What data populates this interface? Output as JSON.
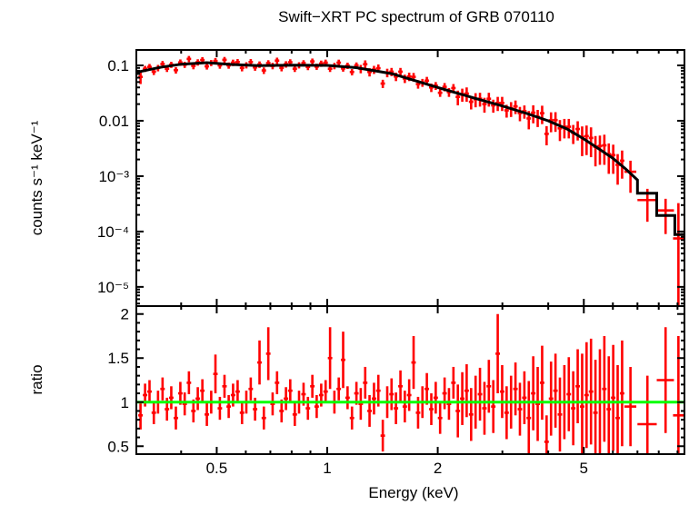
{
  "title": "Swift−XRT PC spectrum of GRB 070110",
  "background_color": "#ffffff",
  "chart_data": {
    "type": "scatter",
    "title": "Swift−XRT PC spectrum of GRB 070110",
    "xlabel": "Energy (keV)",
    "xscale": "log",
    "xlim": [
      0.302,
      9.4
    ],
    "grid": "off",
    "legend": "none",
    "xticks_major": {
      "values": [
        0.5,
        1,
        2,
        5
      ],
      "labels": [
        "0.5",
        "1",
        "2",
        "5"
      ]
    },
    "xticks_minor": [
      0.4,
      0.6,
      0.7,
      0.8,
      0.9,
      3,
      4,
      6,
      7,
      8,
      9
    ],
    "colors": {
      "data": "#ff0000",
      "model": "#000000",
      "reference": "#00ff00",
      "frame": "#000000"
    },
    "bin_halfwidth_frac": 0.014,
    "panels": [
      {
        "name": "spectrum",
        "ylabel": "counts s⁻¹ keV⁻¹",
        "yscale": "log",
        "ylim": [
          4.5e-06,
          0.19
        ],
        "yticks_major": {
          "values": [
            0.1,
            0.01,
            0.001,
            0.0001,
            1e-05
          ],
          "labels": [
            "0.1",
            "0.01",
            "10⁻³",
            "10⁻⁴",
            "10⁻⁵"
          ]
        }
      },
      {
        "name": "ratio",
        "ylabel": "ratio",
        "yscale": "linear",
        "ylim": [
          0.41,
          2.09
        ],
        "yticks_major": {
          "values": [
            0.5,
            1,
            1.5,
            2
          ],
          "labels": [
            "0.5",
            "1",
            "1.5",
            "2"
          ]
        },
        "yticks_minor_step": 0.1,
        "reference_line": 1.0
      }
    ],
    "model_anchors": [
      [
        0.302,
        0.075
      ],
      [
        0.35,
        0.092
      ],
      [
        0.4,
        0.105
      ],
      [
        0.47,
        0.112
      ],
      [
        0.55,
        0.104
      ],
      [
        0.65,
        0.099
      ],
      [
        0.8,
        0.101
      ],
      [
        1.0,
        0.1
      ],
      [
        1.2,
        0.091
      ],
      [
        1.5,
        0.071
      ],
      [
        2.0,
        0.04
      ],
      [
        2.5,
        0.026
      ],
      [
        3.0,
        0.0185
      ],
      [
        3.5,
        0.0135
      ],
      [
        4.0,
        0.01
      ],
      [
        4.5,
        0.0071
      ],
      [
        5.0,
        0.0047
      ],
      [
        5.5,
        0.0031
      ],
      [
        6.0,
        0.0021
      ],
      [
        6.5,
        0.00135
      ],
      [
        7.0,
        0.00085
      ]
    ],
    "model_steps": [
      [
        7.0,
        7.9,
        0.00049
      ],
      [
        7.9,
        8.85,
        0.000195
      ],
      [
        8.85,
        9.4,
        8.8e-05
      ]
    ],
    "points_columns": [
      "energy_keV",
      "counts",
      "counts_err",
      "ratio",
      "ratio_err"
    ],
    "points": [
      [
        0.31,
        0.062,
        0.016,
        0.85,
        0.16
      ],
      [
        0.319,
        0.087,
        0.011,
        1.08,
        0.13
      ],
      [
        0.328,
        0.094,
        0.012,
        1.12,
        0.13
      ],
      [
        0.337,
        0.077,
        0.01,
        0.88,
        0.13
      ],
      [
        0.346,
        0.09,
        0.012,
        1.0,
        0.13
      ],
      [
        0.356,
        0.106,
        0.014,
        1.15,
        0.13
      ],
      [
        0.366,
        0.087,
        0.011,
        0.92,
        0.13
      ],
      [
        0.376,
        0.103,
        0.013,
        1.05,
        0.13
      ],
      [
        0.387,
        0.082,
        0.011,
        0.82,
        0.13
      ],
      [
        0.398,
        0.113,
        0.015,
        1.1,
        0.13
      ],
      [
        0.409,
        0.103,
        0.013,
        0.98,
        0.13
      ],
      [
        0.42,
        0.131,
        0.017,
        1.22,
        0.13
      ],
      [
        0.432,
        0.098,
        0.013,
        0.9,
        0.13
      ],
      [
        0.444,
        0.114,
        0.015,
        1.04,
        0.13
      ],
      [
        0.457,
        0.125,
        0.016,
        1.13,
        0.13
      ],
      [
        0.47,
        0.096,
        0.012,
        0.86,
        0.13
      ],
      [
        0.483,
        0.111,
        0.014,
        1.0,
        0.13
      ],
      [
        0.496,
        0.12,
        0.016,
        1.32,
        0.22
      ],
      [
        0.51,
        0.1,
        0.013,
        0.93,
        0.13
      ],
      [
        0.525,
        0.126,
        0.016,
        1.18,
        0.13
      ],
      [
        0.539,
        0.1,
        0.013,
        0.95,
        0.13
      ],
      [
        0.554,
        0.112,
        0.015,
        1.08,
        0.13
      ],
      [
        0.57,
        0.115,
        0.015,
        1.12,
        0.13
      ],
      [
        0.586,
        0.09,
        0.012,
        0.88,
        0.13
      ],
      [
        0.602,
        0.101,
        0.013,
        1.0,
        0.13
      ],
      [
        0.619,
        0.115,
        0.015,
        1.15,
        0.13
      ],
      [
        0.636,
        0.092,
        0.012,
        0.92,
        0.13
      ],
      [
        0.654,
        0.104,
        0.014,
        1.45,
        0.25
      ],
      [
        0.672,
        0.081,
        0.011,
        0.82,
        0.13
      ],
      [
        0.691,
        0.11,
        0.014,
        1.55,
        0.3
      ],
      [
        0.71,
        0.098,
        0.013,
        0.98,
        0.13
      ],
      [
        0.73,
        0.122,
        0.016,
        1.22,
        0.13
      ],
      [
        0.751,
        0.09,
        0.012,
        0.9,
        0.13
      ],
      [
        0.772,
        0.105,
        0.014,
        1.04,
        0.13
      ],
      [
        0.793,
        0.114,
        0.015,
        1.13,
        0.13
      ],
      [
        0.816,
        0.087,
        0.011,
        0.86,
        0.13
      ],
      [
        0.838,
        0.101,
        0.013,
        1.0,
        0.13
      ],
      [
        0.862,
        0.11,
        0.014,
        1.09,
        0.13
      ],
      [
        0.886,
        0.094,
        0.012,
        0.93,
        0.13
      ],
      [
        0.911,
        0.118,
        0.015,
        1.18,
        0.13
      ],
      [
        0.936,
        0.095,
        0.012,
        0.95,
        0.13
      ],
      [
        0.963,
        0.108,
        0.014,
        1.08,
        0.13
      ],
      [
        0.99,
        0.112,
        0.015,
        1.12,
        0.13
      ],
      [
        1.018,
        0.087,
        0.011,
        1.5,
        0.35
      ],
      [
        1.046,
        0.098,
        0.013,
        1.0,
        0.13
      ],
      [
        1.075,
        0.112,
        0.015,
        1.15,
        0.13
      ],
      [
        1.105,
        0.088,
        0.011,
        1.48,
        0.32
      ],
      [
        1.136,
        0.099,
        0.013,
        1.05,
        0.13
      ],
      [
        1.168,
        0.076,
        0.01,
        0.82,
        0.13
      ],
      [
        1.201,
        0.1,
        0.013,
        1.1,
        0.13
      ],
      [
        1.234,
        0.087,
        0.015,
        0.98,
        0.18
      ],
      [
        1.269,
        0.105,
        0.018,
        1.22,
        0.18
      ],
      [
        1.304,
        0.076,
        0.013,
        0.9,
        0.18
      ],
      [
        1.341,
        0.084,
        0.014,
        1.04,
        0.18
      ],
      [
        1.378,
        0.089,
        0.015,
        1.13,
        0.18
      ],
      [
        1.417,
        0.047,
        0.008,
        0.62,
        0.18
      ],
      [
        1.457,
        0.074,
        0.013,
        1.0,
        0.18
      ],
      [
        1.497,
        0.077,
        0.013,
        1.09,
        0.18
      ],
      [
        1.539,
        0.063,
        0.011,
        0.93,
        0.18
      ],
      [
        1.583,
        0.077,
        0.013,
        1.18,
        0.18
      ],
      [
        1.627,
        0.058,
        0.01,
        0.95,
        0.18
      ],
      [
        1.672,
        0.063,
        0.011,
        1.08,
        0.18
      ],
      [
        1.719,
        0.062,
        0.011,
        1.45,
        0.3
      ],
      [
        1.768,
        0.046,
        0.008,
        0.88,
        0.18
      ],
      [
        1.817,
        0.049,
        0.008,
        1.0,
        0.18
      ],
      [
        1.868,
        0.053,
        0.009,
        1.15,
        0.18
      ],
      [
        1.921,
        0.04,
        0.007,
        0.92,
        0.18
      ],
      [
        1.975,
        0.043,
        0.007,
        1.05,
        0.18
      ],
      [
        2.03,
        0.032,
        0.005,
        0.82,
        0.18
      ],
      [
        2.088,
        0.041,
        0.007,
        1.1,
        0.18
      ],
      [
        2.146,
        0.033,
        0.006,
        0.98,
        0.18
      ],
      [
        2.207,
        0.039,
        0.007,
        1.22,
        0.18
      ],
      [
        2.269,
        0.027,
        0.008,
        0.9,
        0.3
      ],
      [
        2.333,
        0.03,
        0.008,
        1.04,
        0.3
      ],
      [
        2.398,
        0.031,
        0.009,
        1.13,
        0.3
      ],
      [
        2.466,
        0.022,
        0.006,
        0.86,
        0.3
      ],
      [
        2.536,
        0.0245,
        0.007,
        1.0,
        0.3
      ],
      [
        2.607,
        0.025,
        0.007,
        1.09,
        0.3
      ],
      [
        2.681,
        0.02,
        0.006,
        0.93,
        0.3
      ],
      [
        2.756,
        0.025,
        0.007,
        1.18,
        0.3
      ],
      [
        2.834,
        0.019,
        0.005,
        0.95,
        0.3
      ],
      [
        2.914,
        0.021,
        0.006,
        1.55,
        0.45
      ],
      [
        2.996,
        0.021,
        0.006,
        1.12,
        0.3
      ],
      [
        3.081,
        0.0154,
        0.004,
        0.88,
        0.3
      ],
      [
        3.168,
        0.0167,
        0.005,
        1.0,
        0.3
      ],
      [
        3.257,
        0.0182,
        0.005,
        1.15,
        0.3
      ],
      [
        3.349,
        0.0138,
        0.004,
        0.92,
        0.3
      ],
      [
        3.444,
        0.0149,
        0.004,
        1.05,
        0.3
      ],
      [
        3.541,
        0.011,
        0.004,
        0.82,
        0.42
      ],
      [
        3.641,
        0.014,
        0.005,
        1.1,
        0.42
      ],
      [
        3.744,
        0.0117,
        0.004,
        0.98,
        0.42
      ],
      [
        3.85,
        0.0137,
        0.005,
        1.22,
        0.42
      ],
      [
        3.959,
        0.0058,
        0.0022,
        0.55,
        0.3
      ],
      [
        4.071,
        0.0102,
        0.004,
        1.04,
        0.42
      ],
      [
        4.186,
        0.0103,
        0.004,
        1.13,
        0.42
      ],
      [
        4.304,
        0.0073,
        0.003,
        0.86,
        0.42
      ],
      [
        4.426,
        0.0078,
        0.003,
        1.0,
        0.42
      ],
      [
        4.551,
        0.0078,
        0.003,
        1.09,
        0.42
      ],
      [
        4.679,
        0.0061,
        0.0023,
        0.93,
        0.42
      ],
      [
        4.812,
        0.0071,
        0.0027,
        1.18,
        0.42
      ],
      [
        4.948,
        0.0051,
        0.0028,
        0.95,
        0.6
      ],
      [
        5.087,
        0.0053,
        0.0029,
        1.08,
        0.6
      ],
      [
        5.231,
        0.0049,
        0.0027,
        1.12,
        0.6
      ],
      [
        5.379,
        0.0034,
        0.0019,
        0.88,
        0.6
      ],
      [
        5.531,
        0.0035,
        0.0019,
        1.0,
        0.6
      ],
      [
        5.687,
        0.0036,
        0.002,
        1.15,
        0.6
      ],
      [
        5.848,
        0.0025,
        0.0014,
        0.92,
        0.6
      ],
      [
        6.013,
        0.0024,
        0.0013,
        1.05,
        0.6
      ],
      [
        6.183,
        0.0016,
        0.0009,
        0.82,
        0.6
      ],
      [
        6.358,
        0.0019,
        0.001,
        1.1,
        0.6
      ]
    ],
    "wide_points_columns": [
      "energy_keV",
      "energy_halfwidth_keV",
      "counts",
      "counts_err",
      "ratio",
      "ratio_err"
    ],
    "wide_points": [
      [
        6.7,
        0.25,
        0.0012,
        0.0007,
        0.95,
        0.45
      ],
      [
        7.45,
        0.45,
        0.00037,
        0.00022,
        0.75,
        0.55
      ],
      [
        8.35,
        0.45,
        0.00024,
        0.00015,
        1.25,
        0.6
      ],
      [
        9.05,
        0.3,
        7.5e-05,
        0.00025,
        0.85,
        0.9
      ]
    ]
  }
}
